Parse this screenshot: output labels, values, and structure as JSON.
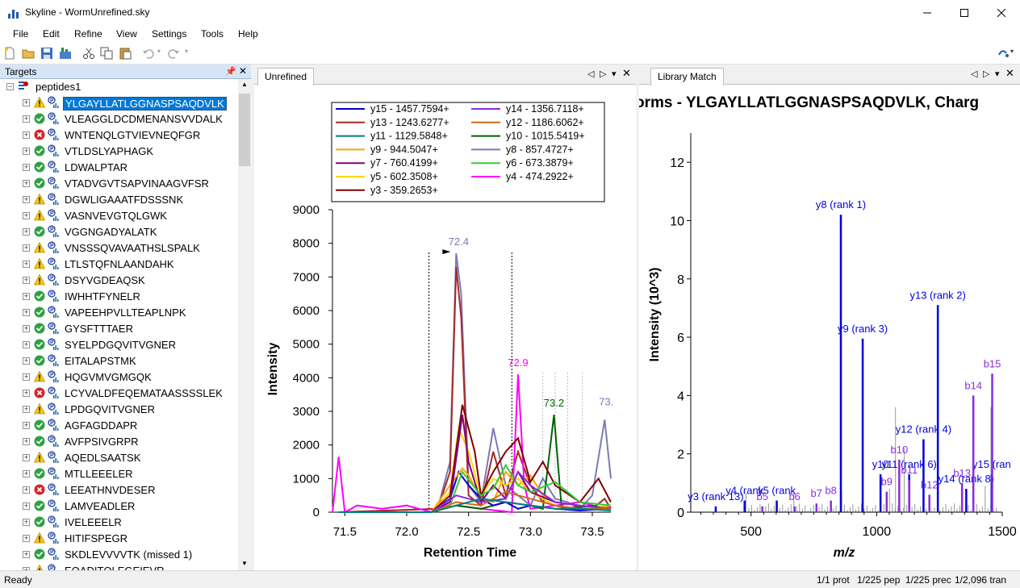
{
  "window": {
    "title": "Skyline - WormUnrefined.sky"
  },
  "menu": [
    "File",
    "Edit",
    "Refine",
    "View",
    "Settings",
    "Tools",
    "Help"
  ],
  "targets": {
    "title": "Targets",
    "root": "peptides1",
    "items": [
      {
        "label": "YLGAYLLATLGGNASPSAQDVLK",
        "status": "warn",
        "selected": true
      },
      {
        "label": "VLEAGGLDCDMENANSVVDALK",
        "status": "ok"
      },
      {
        "label": "WNTENQLGTVIEVNEQFGR",
        "status": "error"
      },
      {
        "label": "VTLDSLYAPHAGK",
        "status": "ok"
      },
      {
        "label": "LDWALPTAR",
        "status": "ok"
      },
      {
        "label": "VTADVGVTSAPVINAAGVFSR",
        "status": "ok"
      },
      {
        "label": "DGWLIGAAATFDSSSNK",
        "status": "warn"
      },
      {
        "label": "VASNVEVGTQLGWK",
        "status": "warn"
      },
      {
        "label": "VGGNGADYALATK",
        "status": "ok"
      },
      {
        "label": "VNSSSQVAVAATHSLSPALK",
        "status": "warn"
      },
      {
        "label": "LTLSTQFNLAANDAHK",
        "status": "warn"
      },
      {
        "label": "DSYVGDEAQSK",
        "status": "warn"
      },
      {
        "label": "IWHHTFYNELR",
        "status": "ok"
      },
      {
        "label": "VAPEEHPVLLTEAPLNPK",
        "status": "ok"
      },
      {
        "label": "GYSFTTTAER",
        "status": "ok"
      },
      {
        "label": "SYELPDGQVITVGNER",
        "status": "ok"
      },
      {
        "label": "EITALAPSTMK",
        "status": "ok"
      },
      {
        "label": "HQGVMVGMGQK",
        "status": "warn"
      },
      {
        "label": "LCYVALDFEQEMATAASSSSLEK",
        "status": "error"
      },
      {
        "label": "LPDGQVITVGNER",
        "status": "warn"
      },
      {
        "label": "AGFAGDDAPR",
        "status": "ok"
      },
      {
        "label": "AVFPSIVGRPR",
        "status": "ok"
      },
      {
        "label": "AQEDLSAATSK",
        "status": "warn"
      },
      {
        "label": "MTLLEEELER",
        "status": "ok"
      },
      {
        "label": "LEEATHNVDESER",
        "status": "error"
      },
      {
        "label": "LAMVEADLER",
        "status": "ok"
      },
      {
        "label": "IVELEEELR",
        "status": "ok"
      },
      {
        "label": "HITIFSPEGR",
        "status": "warn"
      },
      {
        "label": "SKDLEVVVVTK (missed 1)",
        "status": "ok"
      },
      {
        "label": "EQADITQLEGEIEVR",
        "status": "warn"
      }
    ]
  },
  "chrom_pane": {
    "tab": "Unrefined",
    "colors": {
      "y15": "#0000cc",
      "y14": "#8a2be2",
      "y13": "#a52a2a",
      "y12": "#d2691e",
      "y11": "#008080",
      "y10": "#006400",
      "y9": "#ffa500",
      "y8": "#7b7bb5",
      "y7": "#800080",
      "y6": "#32cd32",
      "y5": "#ffd700",
      "y4": "#ff00ff",
      "y3": "#800000"
    },
    "legend": [
      [
        "y15 - 1457.7594+",
        "y14 - 1356.7118+"
      ],
      [
        "y13 - 1243.6277+",
        "y12 - 1186.6062+"
      ],
      [
        "y11 - 1129.5848+",
        "y10 - 1015.5419+"
      ],
      [
        "y9 - 944.5047+",
        "y8 - 857.4727+"
      ],
      [
        "y7 - 760.4199+",
        "y6 - 673.3879+"
      ],
      [
        "y5 - 602.3508+",
        "y4 - 474.2922+"
      ],
      [
        "y3 - 359.2653+",
        ""
      ]
    ],
    "peak_labels": [
      "72.4",
      "72.9",
      "73.2",
      "73."
    ]
  },
  "chart_data": [
    {
      "type": "line",
      "xlabel": "Retention Time",
      "ylabel": "Intensity",
      "xlim": [
        71.4,
        73.65
      ],
      "ylim": [
        0,
        9000
      ],
      "x_ticks": [
        "71.5",
        "72.0",
        "72.5",
        "73.0",
        "73.5"
      ],
      "y_ticks": [
        "0",
        "1000",
        "2000",
        "3000",
        "4000",
        "5000",
        "6000",
        "7000",
        "8000",
        "9000"
      ],
      "peak_boundaries": [
        72.18,
        72.85
      ],
      "series": [
        {
          "name": "y8 - 857.4727+",
          "x": [
            71.45,
            72.25,
            72.35,
            72.4,
            72.44,
            72.5,
            72.6,
            72.7,
            72.8,
            72.9,
            73.0,
            73.1,
            73.2,
            73.3,
            73.4,
            73.5,
            73.6,
            73.65
          ],
          "values": [
            0,
            100,
            1500,
            7700,
            6500,
            800,
            300,
            2500,
            800,
            500,
            200,
            1000,
            400,
            300,
            100,
            500,
            2750,
            1000
          ]
        },
        {
          "name": "y13 - 1243.6277+",
          "x": [
            71.45,
            72.25,
            72.35,
            72.4,
            72.44,
            72.5,
            72.6,
            72.7,
            72.8,
            72.9,
            73.0,
            73.1,
            73.2,
            73.3,
            73.4,
            73.5,
            73.6,
            73.65
          ],
          "values": [
            0,
            100,
            1200,
            7300,
            5800,
            500,
            200,
            1800,
            500,
            1800,
            800,
            300,
            200,
            100,
            200,
            100,
            400,
            100
          ]
        },
        {
          "name": "y4 - 474.2922+",
          "x": [
            71.4,
            71.45,
            71.5,
            71.6,
            71.8,
            72.0,
            72.2,
            72.4,
            72.6,
            72.85,
            72.9,
            72.95,
            73.0,
            73.2,
            73.4,
            73.6,
            73.65
          ],
          "values": [
            0,
            1650,
            0,
            200,
            100,
            200,
            0,
            200,
            100,
            0,
            4100,
            800,
            100,
            200,
            300,
            100,
            200
          ]
        },
        {
          "name": "y10 - 1015.5419+",
          "x": [
            71.45,
            72.2,
            72.4,
            72.6,
            72.8,
            73.0,
            73.1,
            73.19,
            73.25,
            73.3,
            73.5,
            73.65
          ],
          "values": [
            0,
            0,
            200,
            100,
            300,
            200,
            100,
            2900,
            200,
            100,
            200,
            100
          ]
        },
        {
          "name": "y15 - 1457.7594+",
          "x": [
            71.45,
            72.2,
            72.35,
            72.42,
            72.5,
            72.6,
            72.7,
            72.8,
            72.9,
            73.0,
            73.2,
            73.4,
            73.65
          ],
          "values": [
            0,
            0,
            400,
            1200,
            800,
            400,
            200,
            300,
            100,
            200,
            100,
            50,
            100
          ]
        },
        {
          "name": "y9 - 944.5047+",
          "x": [
            71.45,
            72.2,
            72.35,
            72.45,
            72.5,
            72.6,
            72.7,
            72.8,
            72.9,
            73.0,
            73.1,
            73.2,
            73.4,
            73.65
          ],
          "values": [
            0,
            0,
            800,
            1300,
            1100,
            400,
            300,
            1200,
            800,
            1100,
            500,
            300,
            200,
            100
          ]
        },
        {
          "name": "y5 - 602.3508+",
          "x": [
            71.45,
            72.2,
            72.35,
            72.42,
            72.5,
            72.6,
            72.7,
            72.8,
            72.9,
            73.0,
            73.2,
            73.4,
            73.65
          ],
          "values": [
            0,
            0,
            600,
            2500,
            1800,
            500,
            1000,
            800,
            1000,
            600,
            200,
            100,
            200
          ]
        },
        {
          "name": "y3 - 359.2653+",
          "x": [
            71.45,
            72.2,
            72.35,
            72.45,
            72.55,
            72.6,
            72.7,
            72.8,
            72.9,
            73.0,
            73.1,
            73.2,
            73.4,
            73.55,
            73.65
          ],
          "values": [
            0,
            0,
            500,
            3200,
            1800,
            500,
            1200,
            1800,
            2200,
            900,
            1500,
            800,
            300,
            1000,
            300
          ]
        },
        {
          "name": "y7 - 760.4199+",
          "x": [
            71.45,
            72.2,
            72.35,
            72.45,
            72.5,
            72.6,
            72.7,
            72.8,
            72.9,
            73.0,
            73.2,
            73.4,
            73.65
          ],
          "values": [
            0,
            0,
            300,
            2900,
            1500,
            300,
            800,
            400,
            1200,
            600,
            300,
            200,
            100
          ]
        },
        {
          "name": "y6 - 673.3879+",
          "x": [
            71.45,
            72.2,
            72.35,
            72.45,
            72.6,
            72.7,
            72.8,
            72.9,
            73.0,
            73.2,
            73.4,
            73.65
          ],
          "values": [
            0,
            0,
            200,
            1200,
            500,
            700,
            1400,
            800,
            600,
            900,
            300,
            200
          ]
        },
        {
          "name": "y14 - 1356.7118+",
          "x": [
            71.45,
            72.2,
            72.4,
            72.6,
            72.8,
            72.9,
            73.0,
            73.2,
            73.4,
            73.65
          ],
          "values": [
            0,
            0,
            500,
            300,
            400,
            1200,
            800,
            300,
            200,
            100
          ]
        },
        {
          "name": "y12 - 1186.6062+",
          "x": [
            71.45,
            72.2,
            72.4,
            72.6,
            72.8,
            73.0,
            73.2,
            73.4,
            73.65
          ],
          "values": [
            0,
            0,
            300,
            200,
            600,
            400,
            200,
            100,
            100
          ]
        },
        {
          "name": "y11 - 1129.5848+",
          "x": [
            71.45,
            72.2,
            72.4,
            72.6,
            72.8,
            73.0,
            73.2,
            73.4,
            73.65
          ],
          "values": [
            0,
            0,
            200,
            400,
            300,
            200,
            100,
            100,
            50
          ]
        }
      ]
    },
    {
      "type": "bar",
      "title": "orms - YLGAYLLATLGGNASPSAQDVLK, Charg",
      "xlabel": "m/z",
      "ylabel": "Intensity (10^3)",
      "xlim": [
        260,
        1500
      ],
      "ylim": [
        0,
        13
      ],
      "x_ticks": [
        "500",
        "1000",
        "1500"
      ],
      "y_ticks": [
        "0",
        "2",
        "4",
        "6",
        "8",
        "10",
        "12"
      ],
      "peaks": [
        {
          "mz": 359.3,
          "intensity": 0.2,
          "label": "y3 (rank 13)",
          "ion": "y"
        },
        {
          "mz": 474.3,
          "intensity": 0.4,
          "label": "y4 (rank",
          "ion": "y"
        },
        {
          "mz": 602.4,
          "intensity": 0.4,
          "label": "y5 (rank",
          "ion": "y"
        },
        {
          "mz": 673.4,
          "intensity": 0.2,
          "label": "b6",
          "ion": "b"
        },
        {
          "mz": 760.4,
          "intensity": 0.3,
          "label": "b7",
          "ion": "b"
        },
        {
          "mz": 857.5,
          "intensity": 10.2,
          "label": "y8 (rank 1)",
          "ion": "y"
        },
        {
          "mz": 944.5,
          "intensity": 5.95,
          "label": "y9 (rank 3)",
          "ion": "y"
        },
        {
          "mz": 1015.5,
          "intensity": 1.3,
          "label": "y10",
          "ion": "y"
        },
        {
          "mz": 1129.6,
          "intensity": 1.3,
          "label": "y11 (rank 6)",
          "ion": "y"
        },
        {
          "mz": 1186.6,
          "intensity": 2.5,
          "label": "y12 (rank 4)",
          "ion": "y"
        },
        {
          "mz": 1243.6,
          "intensity": 7.1,
          "label": "y13 (rank 2)",
          "ion": "y"
        },
        {
          "mz": 1356.7,
          "intensity": 0.8,
          "label": "y14 (rank 8)",
          "ion": "y"
        },
        {
          "mz": 1457.8,
          "intensity": 1.3,
          "label": "y15 (ran",
          "ion": "y"
        },
        {
          "mz": 818,
          "intensity": 0.4,
          "label": "b8",
          "ion": "b"
        },
        {
          "mz": 1040,
          "intensity": 0.7,
          "label": "b9",
          "ion": "b"
        },
        {
          "mz": 1090,
          "intensity": 1.8,
          "label": "b10",
          "ion": "b"
        },
        {
          "mz": 1130,
          "intensity": 1.1,
          "label": "b11",
          "ion": "b"
        },
        {
          "mz": 1210,
          "intensity": 0.6,
          "label": "b12",
          "ion": "b"
        },
        {
          "mz": 1340,
          "intensity": 1.0,
          "label": "b13",
          "ion": "b"
        },
        {
          "mz": 1385,
          "intensity": 4.0,
          "label": "b14",
          "ion": "b"
        },
        {
          "mz": 1460,
          "intensity": 4.75,
          "label": "b15",
          "ion": "b"
        },
        {
          "mz": 545,
          "intensity": 0.2,
          "label": "b5",
          "ion": "b"
        }
      ]
    }
  ],
  "library_pane": {
    "tab": "Library Match"
  },
  "status": {
    "left": "Ready",
    "prot": "1/1 prot",
    "pep": "1/225 pep",
    "prec": "1/225 prec",
    "tran": "1/2,096 tran"
  }
}
